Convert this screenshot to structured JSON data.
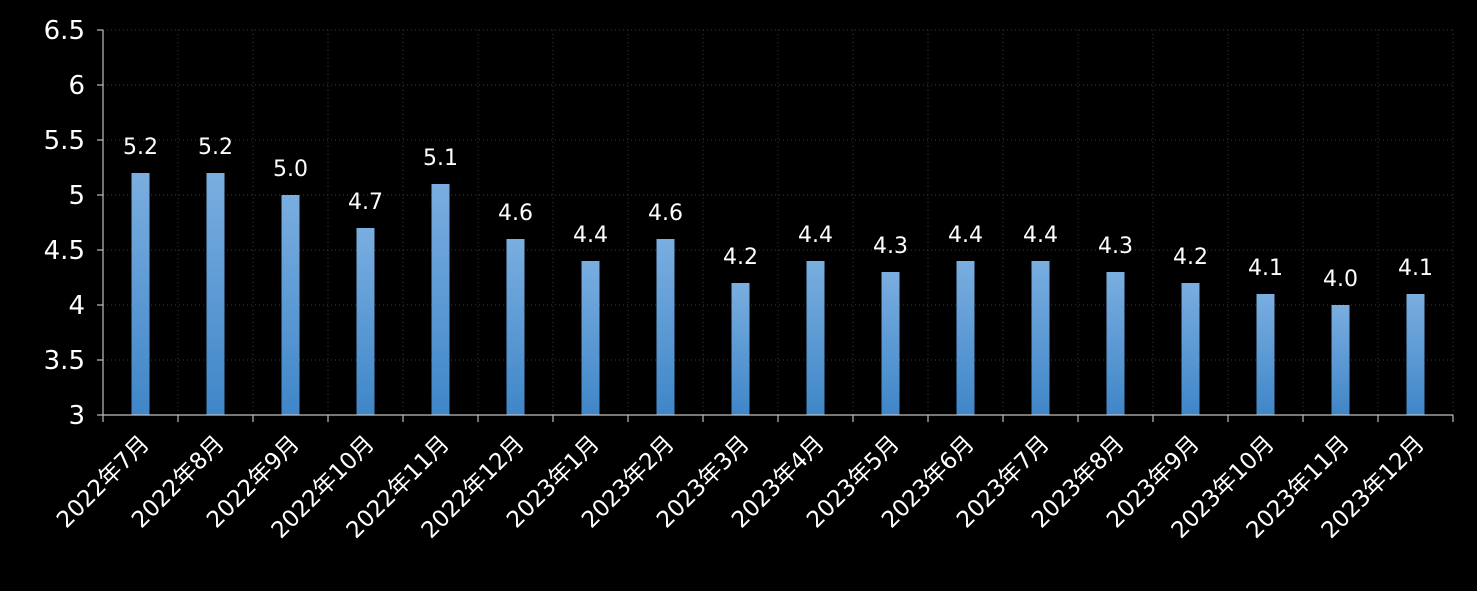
{
  "chart_data": {
    "type": "bar",
    "title": "",
    "xlabel": "",
    "ylabel": "",
    "ylim": [
      3,
      6.5
    ],
    "yticks": [
      "3",
      "3.5",
      "4",
      "4.5",
      "5",
      "5.5",
      "6",
      "6.5"
    ],
    "categories": [
      "2022年7月",
      "2022年8月",
      "2022年9月",
      "2022年10月",
      "2022年11月",
      "2022年12月",
      "2023年1月",
      "2023年2月",
      "2023年3月",
      "2023年4月",
      "2023年5月",
      "2023年6月",
      "2023年7月",
      "2023年8月",
      "2023年9月",
      "2023年10月",
      "2023年11月",
      "2023年12月"
    ],
    "values": [
      5.2,
      5.2,
      5.0,
      4.7,
      5.1,
      4.6,
      4.4,
      4.6,
      4.2,
      4.4,
      4.3,
      4.4,
      4.4,
      4.3,
      4.2,
      4.1,
      4.0,
      4.1
    ],
    "data_labels": [
      "5.2",
      "5.2",
      "5.0",
      "4.7",
      "5.1",
      "4.6",
      "4.4",
      "4.6",
      "4.2",
      "4.4",
      "4.3",
      "4.4",
      "4.4",
      "4.3",
      "4.2",
      "4.1",
      "4.0",
      "4.1"
    ],
    "grid": true,
    "legend": "none",
    "colors": {
      "bar_top": "#7aaee0",
      "bar_bottom": "#3f86c8",
      "background": "#000000",
      "text": "#ffffff"
    }
  }
}
